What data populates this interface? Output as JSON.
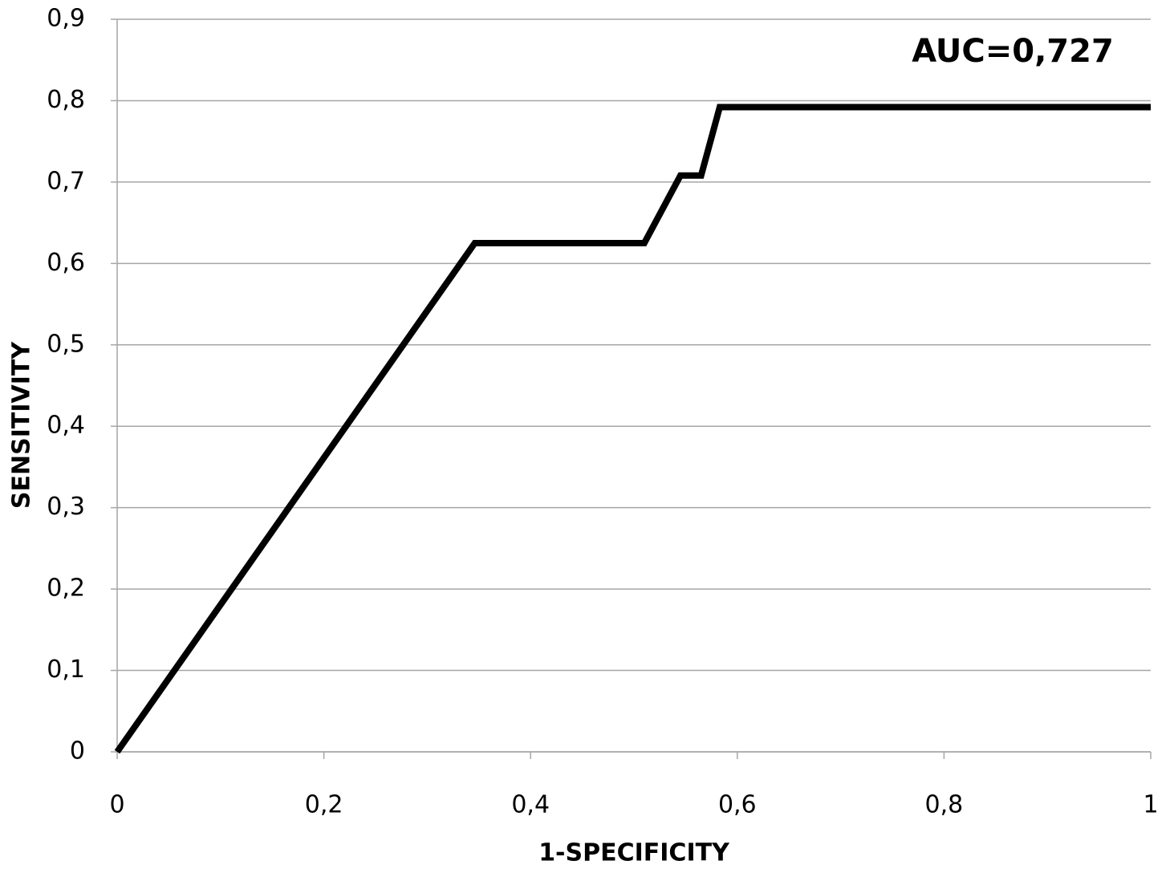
{
  "chart_data": {
    "type": "line",
    "x_label": "1-SPECIFICITY",
    "y_label": "SENSITIVITY",
    "annotation": "AUC=0,727",
    "series": [
      {
        "color": "#000000",
        "x": [
          0,
          0.346,
          0.51,
          0.545,
          0.565,
          0.583,
          1
        ],
        "values": [
          0,
          0.625,
          0.625,
          0.708,
          0.708,
          0.792,
          0.792
        ]
      }
    ],
    "xlim": [
      0,
      1
    ],
    "xticks": [
      0,
      {
        "value": 0.2,
        "label": "0,2"
      },
      {
        "value": 0.4,
        "label": "0,4"
      },
      {
        "value": 0.6,
        "label": "0,6"
      },
      {
        "value": 0.8,
        "label": "0,8"
      },
      1
    ],
    "ylim": [
      0,
      0.9
    ],
    "yticks": [
      0,
      {
        "value": 0.1,
        "label": "0,1"
      },
      {
        "value": 0.2,
        "label": "0,2"
      },
      {
        "value": 0.3,
        "label": "0,3"
      },
      {
        "value": 0.4,
        "label": "0,4"
      },
      {
        "value": 0.5,
        "label": "0,5"
      },
      {
        "value": 0.6,
        "label": "0,6"
      },
      {
        "value": 0.7,
        "label": "0,7"
      },
      {
        "value": 0.8,
        "label": "0,8"
      },
      {
        "value": 0.9,
        "label": "0,9"
      }
    ],
    "grid": true
  }
}
